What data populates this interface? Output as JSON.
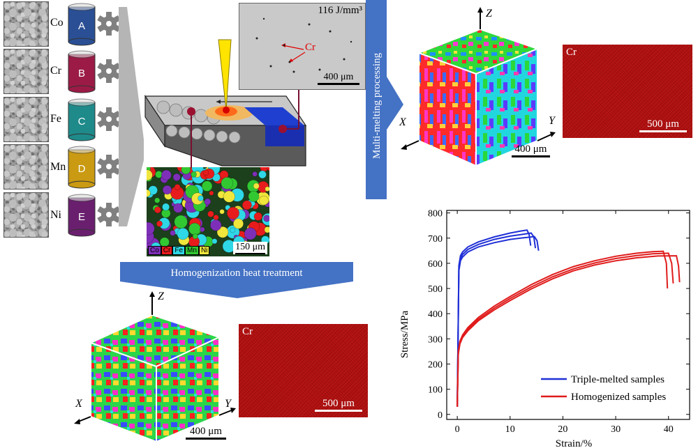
{
  "powders": [
    {
      "element": "Co",
      "can": "A",
      "color": "#2a4f94"
    },
    {
      "element": "Cr",
      "can": "B",
      "color": "#9b1b46"
    },
    {
      "element": "Fe",
      "can": "C",
      "color": "#1f8a8a"
    },
    {
      "element": "Mn",
      "can": "D",
      "color": "#c99a12"
    },
    {
      "element": "Ni",
      "can": "E",
      "color": "#6a1f6e"
    }
  ],
  "micrograph_top": {
    "label": "116 J/mm³",
    "annotation": "Cr",
    "scale": "400 μm"
  },
  "eds_powder": {
    "legend": [
      "Co",
      "Cr",
      "Fe",
      "Mn",
      "Ni"
    ],
    "legend_colors": [
      "#7e2fb8",
      "#e81c1c",
      "#2fd8e6",
      "#32c832",
      "#f0e63c"
    ],
    "scale": "150 μm"
  },
  "arrows": {
    "melting": "Multi-melting processing",
    "homogenization": "Homogenization heat treatment"
  },
  "ebsd_top": {
    "axes": {
      "x": "X",
      "y": "Y",
      "z": "Z"
    },
    "scale": "400 μm"
  },
  "map_top": {
    "element": "Cr",
    "scale": "500 μm"
  },
  "ebsd_bottom": {
    "axes": {
      "x": "X",
      "y": "Y",
      "z": "Z"
    },
    "scale": "400 μm"
  },
  "map_bottom": {
    "element": "Cr",
    "scale": "500 μm"
  },
  "chart_data": {
    "type": "line",
    "xlabel": "Strain/%",
    "ylabel": "Stress/MPa",
    "xlim": [
      -2,
      44
    ],
    "ylim": [
      -20,
      810
    ],
    "xticks": [
      0,
      10,
      20,
      30,
      40
    ],
    "yticks": [
      0,
      100,
      200,
      300,
      400,
      500,
      600,
      700,
      800
    ],
    "legend_position": "bottom-right",
    "series": [
      {
        "name": "Triple-melted samples",
        "color": "#1f2fd6",
        "curves": [
          {
            "x": [
              0,
              0.3,
              0.6,
              1.0,
              2,
              4,
              7,
              10,
              12,
              13.2,
              13.6,
              13.9
            ],
            "y": [
              30,
              590,
              630,
              645,
              665,
              685,
              705,
              720,
              728,
              732,
              715,
              670
            ]
          },
          {
            "x": [
              0,
              0.3,
              0.6,
              1.0,
              2,
              4,
              7,
              10,
              12,
              14,
              14.5,
              14.8
            ],
            "y": [
              30,
              580,
              620,
              635,
              655,
              675,
              695,
              708,
              714,
              720,
              705,
              660
            ]
          },
          {
            "x": [
              0,
              0.3,
              0.6,
              1.0,
              2,
              4,
              7,
              10,
              12,
              14.6,
              15.1,
              15.4
            ],
            "y": [
              30,
              570,
              610,
              625,
              645,
              665,
              682,
              695,
              700,
              706,
              690,
              650
            ]
          }
        ]
      },
      {
        "name": "Homogenized samples",
        "color": "#e01b1b",
        "curves": [
          {
            "x": [
              0,
              0.2,
              0.5,
              1,
              2,
              4,
              7,
              10,
              14,
              18,
              22,
              26,
              30,
              34,
              37,
              39,
              39.6,
              39.8
            ],
            "y": [
              30,
              250,
              290,
              315,
              345,
              385,
              430,
              468,
              515,
              555,
              587,
              610,
              628,
              640,
              646,
              648,
              600,
              500
            ]
          },
          {
            "x": [
              0,
              0.2,
              0.5,
              1,
              2,
              4,
              7,
              10,
              14,
              18,
              22,
              26,
              30,
              34,
              37,
              40,
              40.6,
              40.9
            ],
            "y": [
              30,
              245,
              285,
              310,
              338,
              378,
              422,
              460,
              506,
              546,
              578,
              601,
              619,
              631,
              638,
              640,
              600,
              520
            ]
          },
          {
            "x": [
              0,
              0.2,
              0.5,
              1,
              2,
              4,
              7,
              10,
              14,
              18,
              22,
              26,
              30,
              34,
              38,
              41.5,
              41.9,
              42.1
            ],
            "y": [
              30,
              240,
              280,
              305,
              332,
              372,
              415,
              452,
              498,
              538,
              570,
              593,
              610,
              622,
              629,
              630,
              590,
              525
            ]
          }
        ]
      }
    ]
  }
}
